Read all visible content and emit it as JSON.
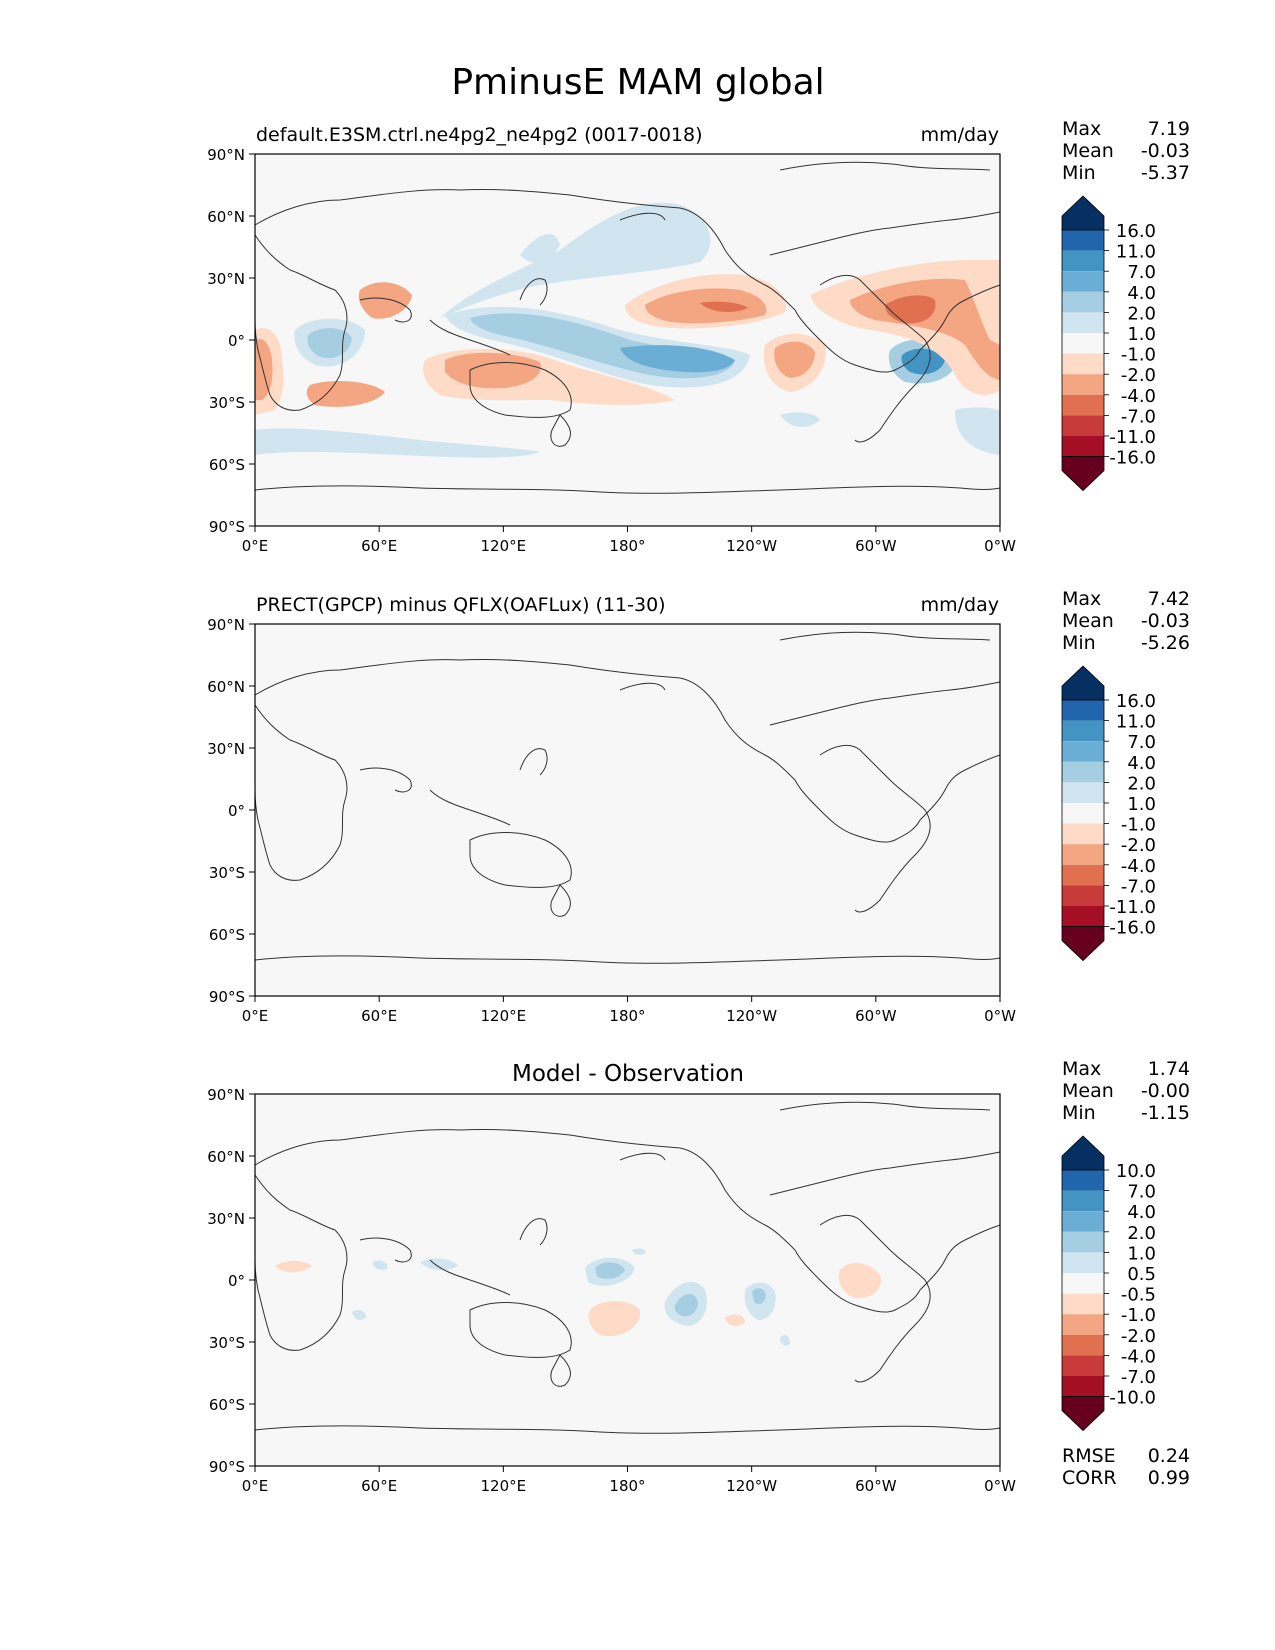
{
  "title": "PminusE MAM global",
  "lat_ticks": [
    "90°N",
    "60°N",
    "30°N",
    "0°",
    "30°S",
    "60°S",
    "90°S"
  ],
  "lon_ticks": [
    "0°E",
    "60°E",
    "120°E",
    "180°",
    "120°W",
    "60°W",
    "0°W"
  ],
  "panels": [
    {
      "left_title": "default.E3SM.ctrl.ne4pg2_ne4pg2 (0017-0018)",
      "center_title": "",
      "units": "mm/day",
      "stats": [
        {
          "label": "Max",
          "value": "7.19"
        },
        {
          "label": "Mean",
          "value": "-0.03"
        },
        {
          "label": "Min",
          "value": "-5.37"
        }
      ],
      "extra_stats": [],
      "colorbar": [
        "16.0",
        "11.0",
        "7.0",
        "4.0",
        "2.0",
        "1.0",
        "-1.0",
        "-2.0",
        "-4.0",
        "-7.0",
        "-11.0",
        "-16.0"
      ]
    },
    {
      "left_title": "PRECT(GPCP) minus QFLX(OAFLux) (11-30)",
      "center_title": "",
      "units": "mm/day",
      "stats": [
        {
          "label": "Max",
          "value": "7.42"
        },
        {
          "label": "Mean",
          "value": "-0.03"
        },
        {
          "label": "Min",
          "value": "-5.26"
        }
      ],
      "extra_stats": [],
      "colorbar": [
        "16.0",
        "11.0",
        "7.0",
        "4.0",
        "2.0",
        "1.0",
        "-1.0",
        "-2.0",
        "-4.0",
        "-7.0",
        "-11.0",
        "-16.0"
      ]
    },
    {
      "left_title": "",
      "center_title": "Model - Observation",
      "units": "",
      "stats": [
        {
          "label": "Max",
          "value": "1.74"
        },
        {
          "label": "Mean",
          "value": "-0.00"
        },
        {
          "label": "Min",
          "value": "-1.15"
        }
      ],
      "extra_stats": [
        {
          "label": "RMSE",
          "value": "0.24"
        },
        {
          "label": "CORR",
          "value": "0.99"
        }
      ],
      "colorbar": [
        "10.0",
        "7.0",
        "4.0",
        "2.0",
        "1.0",
        "0.5",
        "-0.5",
        "-1.0",
        "-2.0",
        "-4.0",
        "-7.0",
        "-10.0"
      ]
    }
  ],
  "colors": {
    "ocean": "#f7f7f7",
    "cmap": [
      "#053061",
      "#2166ac",
      "#4393c3",
      "#6aaed6",
      "#a6cee3",
      "#d1e5f0",
      "#f7f7f7",
      "#fddbc7",
      "#f4a582",
      "#e07050",
      "#c83b3b",
      "#a50f26",
      "#67001f"
    ]
  }
}
